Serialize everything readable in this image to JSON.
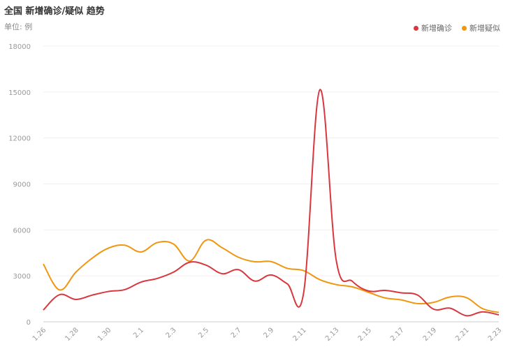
{
  "header": {
    "title": "全国 新增确诊/疑似 趋势",
    "unit": "单位: 例"
  },
  "chart_data": {
    "type": "line",
    "title": "全国 新增确诊/疑似 趋势",
    "ylabel": "单位: 例",
    "ylim": [
      0,
      18000
    ],
    "yticks": [
      0,
      3000,
      6000,
      9000,
      12000,
      15000,
      18000
    ],
    "grid": true,
    "legend_position": "top-right",
    "x": [
      "1.26",
      "1.27",
      "1.28",
      "1.29",
      "1.30",
      "1.31",
      "2.1",
      "2.2",
      "2.3",
      "2.4",
      "2.5",
      "2.6",
      "2.7",
      "2.8",
      "2.9",
      "2.10",
      "2.11",
      "2.12",
      "2.13",
      "2.14",
      "2.15",
      "2.16",
      "2.17",
      "2.18",
      "2.19",
      "2.20",
      "2.21",
      "2.22",
      "2.23"
    ],
    "x_tick_labels": [
      "1.26",
      "1.28",
      "1.30",
      "2.1",
      "2.3",
      "2.5",
      "2.7",
      "2.9",
      "2.11",
      "2.13",
      "2.15",
      "2.17",
      "2.19",
      "2.21",
      "2.23"
    ],
    "series": [
      {
        "name": "新增确诊",
        "color": "#d9363e",
        "values": [
          770,
          1770,
          1460,
          1740,
          1980,
          2100,
          2590,
          2830,
          3240,
          3890,
          3700,
          3140,
          3400,
          2660,
          3060,
          2480,
          1880,
          15150,
          4050,
          2640,
          2010,
          2050,
          1890,
          1750,
          820,
          890,
          400,
          650,
          450
        ]
      },
      {
        "name": "新增疑似",
        "color": "#f0960f",
        "values": [
          3770,
          2080,
          3240,
          4150,
          4810,
          5000,
          4560,
          5170,
          5080,
          3970,
          5330,
          4830,
          4210,
          3920,
          3930,
          3490,
          3340,
          2750,
          2430,
          2280,
          1920,
          1560,
          1430,
          1190,
          1270,
          1620,
          1580,
          860,
          610
        ]
      }
    ]
  }
}
